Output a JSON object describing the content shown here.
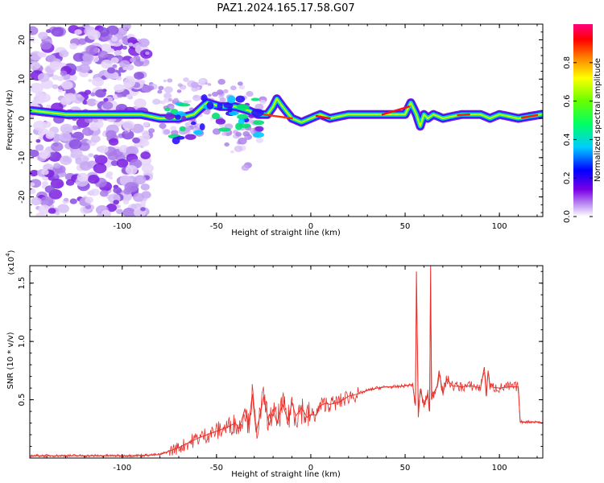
{
  "title": "PAZ1.2024.165.17.58.G07",
  "chart_data": [
    {
      "type": "heatmap",
      "name": "spectrogram",
      "xlabel": "Height of straight line (km)",
      "ylabel": "Frequency (Hz)",
      "xlim": [
        -149,
        123
      ],
      "ylim": [
        -25,
        24
      ],
      "xticks": [
        -100,
        -50,
        0,
        50,
        100
      ],
      "yticks": [
        -20,
        -10,
        0,
        10,
        20
      ],
      "colorbar": {
        "label": "Normalized spectral amplitude",
        "range": [
          0,
          1
        ],
        "ticks": [
          "0.0",
          "0.2",
          "0.4",
          "0.6",
          "0.8"
        ],
        "colormap": "rainbow (white-purple-blue-cyan-green-yellow-orange-red-magenta)"
      },
      "ridge": {
        "x": [
          -148,
          -130,
          -110,
          -90,
          -80,
          -70,
          -62,
          -55,
          -48,
          -40,
          -33,
          -28,
          -23,
          -20,
          -18,
          -15,
          -10,
          -5,
          0,
          5,
          10,
          20,
          30,
          40,
          50,
          53,
          56,
          58,
          60,
          62,
          65,
          70,
          80,
          90,
          95,
          100,
          110,
          122
        ],
        "y": [
          2,
          1,
          1,
          1,
          0,
          0,
          1,
          4,
          3,
          3,
          2,
          1,
          1,
          3,
          5,
          3,
          0,
          -1,
          0,
          1,
          0,
          1,
          1,
          1,
          1,
          4,
          1,
          -2,
          1,
          0,
          1,
          0,
          1,
          1,
          0,
          1,
          0,
          1
        ]
      }
    },
    {
      "type": "line",
      "name": "snr",
      "xlabel": "Height of straight line (km)",
      "ylabel": "SNR (10 * v/v)",
      "y_multiplier": "(x10^4)",
      "xlim": [
        -149,
        123
      ],
      "ylim": [
        0,
        16500
      ],
      "xticks": [
        -100,
        -50,
        0,
        50,
        100
      ],
      "yticks": [
        "0.5",
        "1.0",
        "1.5"
      ],
      "ytick_values": [
        5000,
        10000,
        15000
      ],
      "color": "#e8302a",
      "series": [
        {
          "x": [
            -149,
            -120,
            -100,
            -90,
            -80,
            -75,
            -70,
            -65,
            -60,
            -55,
            -50,
            -45,
            -40,
            -38,
            -35,
            -33,
            -31,
            -29,
            -27,
            -25,
            -22,
            -20,
            -18,
            -15,
            -12,
            -10,
            -8,
            -5,
            -2,
            0,
            3,
            5,
            8,
            10,
            15,
            20,
            25,
            30,
            35,
            40,
            45,
            50,
            54,
            55.5,
            56,
            57,
            58,
            60,
            62,
            63,
            63.5,
            64,
            65,
            67,
            68,
            70,
            72,
            75,
            80,
            85,
            90,
            92,
            93,
            94,
            95,
            100,
            105,
            110,
            111,
            115,
            120,
            123
          ],
          "values": [
            200,
            200,
            200,
            220,
            300,
            600,
            900,
            1300,
            1700,
            2000,
            2300,
            2600,
            3000,
            2500,
            4200,
            2800,
            5500,
            2200,
            3600,
            5300,
            2800,
            4200,
            3000,
            4600,
            3200,
            4800,
            3600,
            4300,
            3500,
            3700,
            3700,
            4500,
            4700,
            4600,
            4800,
            5300,
            5500,
            5800,
            6000,
            6100,
            6100,
            6200,
            6300,
            4500,
            16000,
            3500,
            5900,
            4500,
            5500,
            4000,
            16500,
            5000,
            5500,
            6200,
            7500,
            5500,
            6800,
            6200,
            6100,
            6200,
            6000,
            7800,
            5300,
            7500,
            6100,
            6000,
            6100,
            6100,
            3100,
            3100,
            3100,
            3000
          ]
        }
      ]
    }
  ]
}
